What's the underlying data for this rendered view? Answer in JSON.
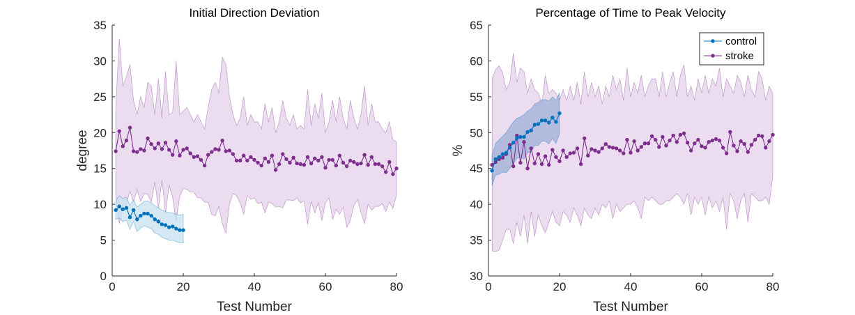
{
  "chart_data": [
    {
      "type": "line",
      "title": "Initial Direction Deviation",
      "xlabel": "Test Number",
      "ylabel": "degree",
      "xlim": [
        0,
        80
      ],
      "ylim": [
        0,
        35
      ],
      "xticks": [
        0,
        20,
        40,
        60,
        80
      ],
      "yticks": [
        0,
        5,
        10,
        15,
        20,
        25,
        30,
        35
      ],
      "legend": null,
      "grid": false,
      "series": [
        {
          "color": "#0072BD",
          "band_color": "#c7e1f2",
          "x": [
            1,
            2,
            3,
            4,
            5,
            6,
            7,
            8,
            9,
            10,
            11,
            12,
            13,
            14,
            15,
            16,
            17,
            18,
            19,
            20
          ],
          "values": [
            9.2,
            9.7,
            9.3,
            9.5,
            8.2,
            9.2,
            7.9,
            8.4,
            8.7,
            8.7,
            8.4,
            7.9,
            7.6,
            7.2,
            7.1,
            6.8,
            6.9,
            6.6,
            6.4,
            6.4
          ],
          "upper": [
            10.5,
            11.2,
            10.8,
            11.0,
            9.9,
            10.6,
            9.6,
            10.0,
            10.4,
            10.5,
            10.2,
            9.8,
            9.5,
            9.2,
            9.0,
            8.8,
            8.8,
            8.6,
            8.5,
            8.6
          ],
          "lower": [
            7.9,
            8.1,
            7.6,
            7.8,
            6.5,
            7.6,
            6.2,
            6.7,
            7.0,
            6.8,
            6.6,
            6.0,
            5.8,
            5.4,
            5.2,
            5.0,
            5.0,
            4.8,
            4.6,
            4.6
          ]
        },
        {
          "color": "#7E2F8E",
          "band_color": "#ead8ee",
          "x": [
            1,
            2,
            3,
            4,
            5,
            6,
            7,
            8,
            9,
            10,
            11,
            12,
            13,
            14,
            15,
            16,
            17,
            18,
            19,
            20,
            21,
            22,
            23,
            24,
            25,
            26,
            27,
            28,
            29,
            30,
            31,
            32,
            33,
            34,
            35,
            36,
            37,
            38,
            39,
            40,
            41,
            42,
            43,
            44,
            45,
            46,
            47,
            48,
            49,
            50,
            51,
            52,
            53,
            54,
            55,
            56,
            57,
            58,
            59,
            60,
            61,
            62,
            63,
            64,
            65,
            66,
            67,
            68,
            69,
            70,
            71,
            72,
            73,
            74,
            75,
            76,
            77,
            78,
            79,
            80
          ],
          "values": [
            17.4,
            20.2,
            18.1,
            18.9,
            20.7,
            17.4,
            17.3,
            17.7,
            17.5,
            19.2,
            18.4,
            17.8,
            18.5,
            17.7,
            18.6,
            17.6,
            16.9,
            18.8,
            16.8,
            17.6,
            17.8,
            17.1,
            16.6,
            16.7,
            16.2,
            15.4,
            16.9,
            17.3,
            17.7,
            17.6,
            18.9,
            17.4,
            17.5,
            17.0,
            16.1,
            16.1,
            16.8,
            16.1,
            16.6,
            16.2,
            15.8,
            15.4,
            16.4,
            15.9,
            16.8,
            14.8,
            15.6,
            17.0,
            16.3,
            15.8,
            16.5,
            15.7,
            15.6,
            15.5,
            16.6,
            15.7,
            16.4,
            16.1,
            16.6,
            15.1,
            16.2,
            16.2,
            15.4,
            16.8,
            15.8,
            15.3,
            16.1,
            15.9,
            15.6,
            15.7,
            16.9,
            15.5,
            16.6,
            15.6,
            15.6,
            15.3,
            14.5,
            15.9,
            14.2,
            15.0
          ],
          "upper": [
            23.5,
            33.1,
            26.5,
            27.8,
            29.5,
            24.5,
            22.5,
            25.0,
            23.5,
            27.0,
            26.5,
            22.5,
            27.5,
            22.0,
            28.5,
            22.5,
            22.8,
            30.0,
            22.5,
            23.0,
            23.5,
            22.5,
            21.5,
            22.5,
            21.5,
            20.5,
            23.5,
            26.0,
            27.0,
            25.5,
            30.5,
            29.5,
            25.0,
            22.5,
            21.0,
            22.0,
            25.0,
            21.0,
            22.5,
            21.5,
            21.5,
            20.5,
            24.0,
            21.5,
            23.5,
            20.0,
            21.5,
            24.5,
            22.0,
            21.0,
            22.5,
            20.5,
            21.0,
            20.5,
            26.0,
            21.0,
            24.0,
            22.0,
            25.5,
            20.0,
            21.5,
            24.5,
            21.5,
            25.0,
            22.0,
            20.5,
            24.5,
            22.0,
            20.5,
            22.5,
            26.5,
            21.0,
            24.0,
            21.5,
            21.5,
            20.5,
            20.0,
            21.5,
            19.0,
            18.7
          ],
          "lower": [
            11.3,
            7.3,
            9.7,
            10.0,
            11.9,
            10.3,
            12.1,
            10.4,
            11.5,
            11.4,
            10.3,
            13.1,
            9.5,
            13.4,
            8.7,
            12.7,
            11.0,
            7.6,
            11.1,
            12.2,
            12.1,
            11.7,
            11.7,
            10.9,
            10.9,
            10.3,
            10.3,
            8.6,
            8.4,
            9.7,
            7.3,
            5.9,
            10.0,
            11.5,
            11.2,
            10.2,
            8.6,
            11.2,
            10.7,
            10.9,
            10.1,
            10.3,
            8.8,
            10.3,
            10.1,
            9.6,
            9.7,
            9.5,
            10.6,
            10.6,
            10.5,
            10.9,
            10.2,
            10.5,
            7.2,
            10.4,
            8.8,
            10.2,
            7.7,
            10.2,
            10.9,
            7.9,
            9.3,
            8.6,
            9.6,
            6.8,
            7.7,
            9.8,
            10.7,
            8.9,
            7.3,
            10.0,
            9.2,
            9.7,
            9.7,
            10.1,
            9.0,
            10.3,
            9.4,
            11.3
          ]
        }
      ]
    },
    {
      "type": "line",
      "title": "Percentage of Time to Peak Velocity",
      "xlabel": "Test Number",
      "ylabel": "%",
      "xlim": [
        0,
        80
      ],
      "ylim": [
        30,
        65
      ],
      "xticks": [
        0,
        20,
        40,
        60,
        80
      ],
      "yticks": [
        30,
        35,
        40,
        45,
        50,
        55,
        60,
        65
      ],
      "legend": "top-right",
      "grid": false,
      "series": [
        {
          "name": "control",
          "color": "#0072BD",
          "band_color": "#9fb0d8",
          "x": [
            1,
            2,
            3,
            4,
            5,
            6,
            7,
            8,
            9,
            10,
            11,
            12,
            13,
            14,
            15,
            16,
            17,
            18,
            19,
            20
          ],
          "values": [
            44.7,
            46.3,
            46.6,
            47.0,
            47.2,
            47.9,
            48.6,
            49.2,
            49.4,
            49.4,
            50.1,
            50.3,
            51.1,
            51.2,
            51.7,
            51.7,
            51.4,
            52.1,
            51.5,
            52.7
          ],
          "upper": [
            46.8,
            48.5,
            49.0,
            49.5,
            50.0,
            50.8,
            51.5,
            52.0,
            52.2,
            52.5,
            53.0,
            53.3,
            54.0,
            54.2,
            54.6,
            54.6,
            54.4,
            55.0,
            54.5,
            55.6
          ],
          "lower": [
            42.6,
            44.1,
            44.2,
            44.5,
            44.4,
            45.0,
            45.7,
            46.4,
            46.6,
            46.3,
            47.2,
            47.3,
            48.2,
            48.2,
            48.8,
            48.8,
            48.4,
            49.2,
            48.5,
            49.8
          ]
        },
        {
          "name": "stroke",
          "color": "#7E2F8E",
          "band_color": "#ead8ee",
          "x": [
            1,
            2,
            3,
            4,
            5,
            6,
            7,
            8,
            9,
            10,
            11,
            12,
            13,
            14,
            15,
            16,
            17,
            18,
            19,
            20,
            21,
            22,
            23,
            24,
            25,
            26,
            27,
            28,
            29,
            30,
            31,
            32,
            33,
            34,
            35,
            36,
            37,
            38,
            39,
            40,
            41,
            42,
            43,
            44,
            45,
            46,
            47,
            48,
            49,
            50,
            51,
            52,
            53,
            54,
            55,
            56,
            57,
            58,
            59,
            60,
            61,
            62,
            63,
            64,
            65,
            66,
            67,
            68,
            69,
            70,
            71,
            72,
            73,
            74,
            75,
            76,
            77,
            78,
            79,
            80
          ],
          "values": [
            45.5,
            45.9,
            46.3,
            46.5,
            47.0,
            48.3,
            45.3,
            49.6,
            45.8,
            48.7,
            45.0,
            47.8,
            45.7,
            47.0,
            45.6,
            46.7,
            45.5,
            47.6,
            46.6,
            46.0,
            47.5,
            46.6,
            47.1,
            47.2,
            47.8,
            45.6,
            49.2,
            46.8,
            47.7,
            47.5,
            47.3,
            47.8,
            48.4,
            48.0,
            47.9,
            47.8,
            47.5,
            47.1,
            49.0,
            47.2,
            48.8,
            47.5,
            48.0,
            48.5,
            48.5,
            49.5,
            49.0,
            48.0,
            49.4,
            48.2,
            48.9,
            49.6,
            48.7,
            49.7,
            49.9,
            48.6,
            47.5,
            48.5,
            49.0,
            48.1,
            47.9,
            48.7,
            48.9,
            49.1,
            48.9,
            47.9,
            47.1,
            50.1,
            48.2,
            47.4,
            48.8,
            48.4,
            47.3,
            48.3,
            49.0,
            49.6,
            49.5,
            47.9,
            48.8,
            49.7
          ],
          "upper": [
            57.5,
            58.8,
            59.3,
            58.3,
            56.0,
            57.0,
            61.1,
            57.0,
            59.0,
            58.5,
            55.5,
            57.5,
            56.0,
            55.5,
            54.0,
            58.0,
            55.5,
            56.0,
            55.5,
            54.5,
            56.0,
            54.5,
            56.5,
            54.5,
            57.0,
            54.0,
            58.5,
            55.0,
            57.0,
            55.0,
            56.5,
            54.0,
            56.5,
            55.0,
            58.0,
            56.0,
            57.5,
            54.5,
            59.0,
            55.0,
            57.0,
            55.5,
            58.0,
            55.0,
            56.5,
            57.5,
            57.5,
            55.0,
            58.5,
            55.0,
            57.0,
            58.5,
            55.0,
            58.0,
            59.5,
            55.0,
            56.5,
            54.5,
            57.5,
            55.5,
            58.0,
            55.5,
            57.5,
            56.5,
            59.0,
            55.0,
            57.5,
            56.5,
            55.5,
            58.0,
            57.0,
            55.0,
            58.0,
            56.0,
            55.0,
            58.5,
            57.5,
            54.5,
            56.5,
            55.4
          ],
          "lower": [
            33.5,
            33.4,
            33.6,
            35.0,
            36.5,
            36.5,
            34.5,
            37.5,
            35.5,
            38.5,
            34.5,
            39.0,
            35.5,
            38.5,
            37.0,
            36.0,
            37.5,
            39.0,
            37.5,
            37.0,
            39.0,
            38.5,
            37.5,
            39.5,
            38.5,
            37.0,
            39.5,
            38.5,
            38.0,
            39.5,
            38.5,
            40.0,
            39.5,
            40.5,
            38.0,
            40.0,
            39.0,
            39.5,
            40.0,
            40.0,
            40.5,
            39.5,
            38.0,
            41.0,
            40.5,
            41.0,
            40.5,
            40.0,
            40.0,
            40.5,
            40.5,
            41.0,
            41.5,
            41.0,
            40.0,
            41.5,
            38.5,
            41.0,
            40.0,
            41.0,
            38.5,
            41.0,
            39.5,
            40.5,
            39.0,
            41.0,
            36.5,
            41.5,
            40.5,
            38.0,
            40.5,
            41.5,
            37.5,
            41.5,
            41.0,
            40.5,
            40.5,
            41.0,
            40.0,
            44.0
          ]
        }
      ]
    }
  ]
}
